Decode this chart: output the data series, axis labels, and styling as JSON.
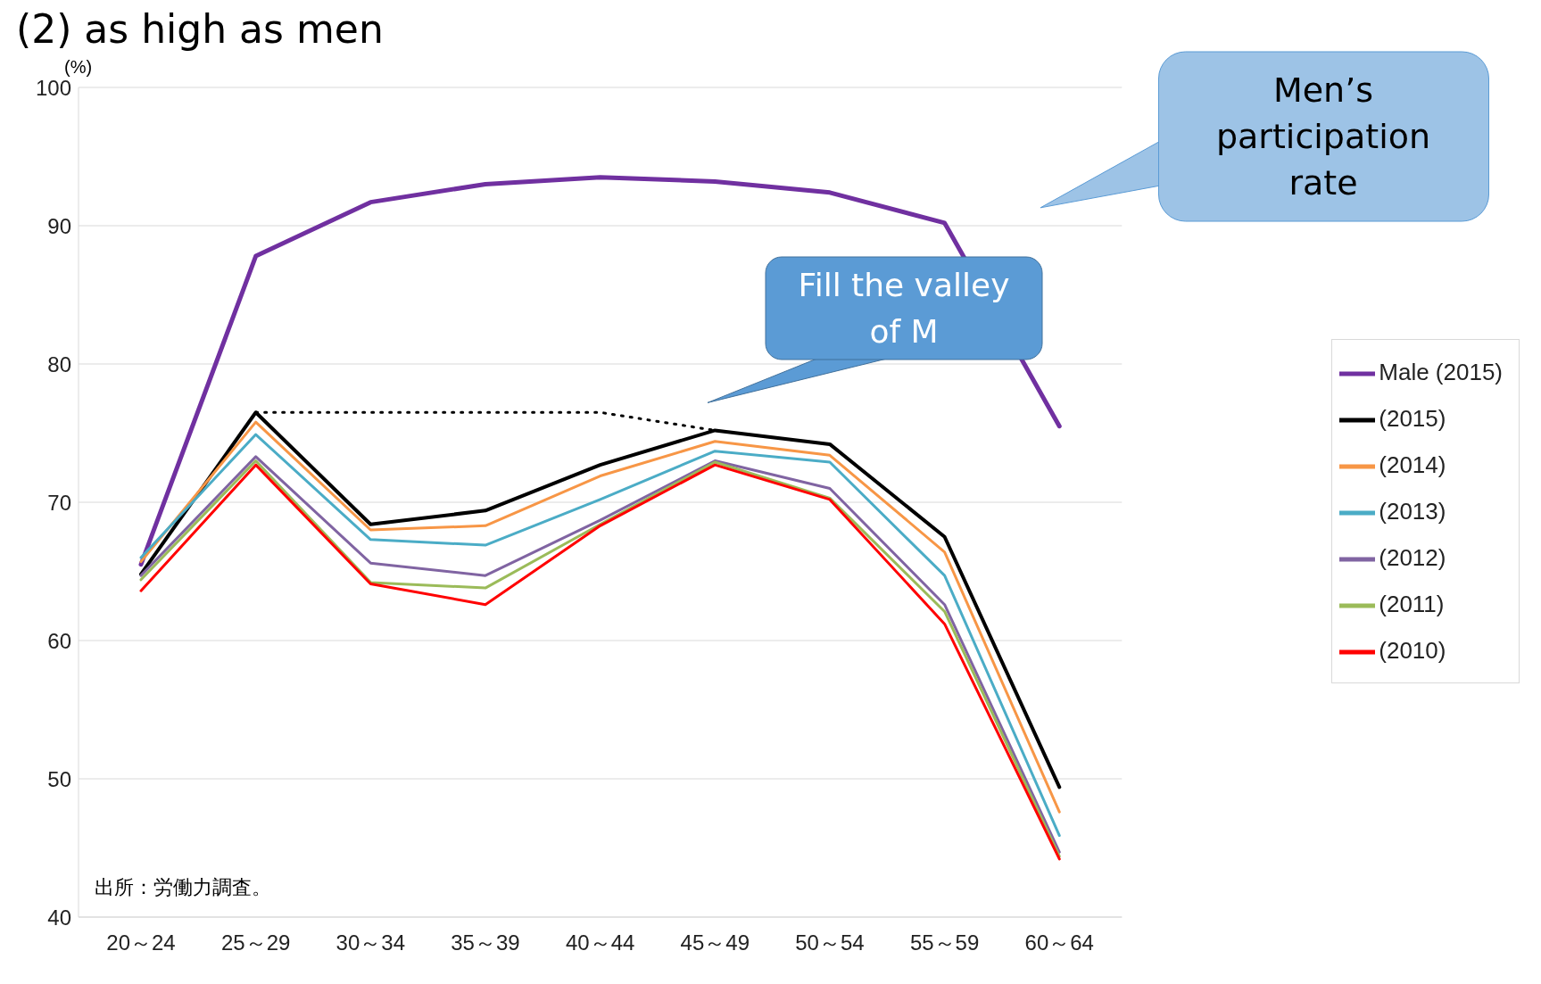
{
  "chart_data": {
    "type": "line",
    "title": "(2) as high as men",
    "ylabel": "(%)",
    "categories": [
      "20～24",
      "25～29",
      "30～34",
      "35～39",
      "40～44",
      "45～49",
      "50～54",
      "55～59",
      "60～64"
    ],
    "series": [
      {
        "name": "Male (2015)",
        "color": "#7030a0",
        "values": [
          65.5,
          87.8,
          91.7,
          93.0,
          93.5,
          93.2,
          92.4,
          90.2,
          75.5
        ]
      },
      {
        "name": "(2015)",
        "color": "#000000",
        "values": [
          64.8,
          76.5,
          68.4,
          69.4,
          72.7,
          75.2,
          74.2,
          67.5,
          49.4
        ]
      },
      {
        "name": "(2014)",
        "color": "#f79646",
        "values": [
          65.7,
          75.8,
          68.0,
          68.3,
          71.9,
          74.4,
          73.4,
          66.4,
          47.6
        ]
      },
      {
        "name": "(2013)",
        "color": "#4bacc6",
        "values": [
          66.0,
          74.9,
          67.3,
          66.9,
          70.2,
          73.7,
          72.9,
          64.7,
          45.9
        ]
      },
      {
        "name": "(2012)",
        "color": "#8064a2",
        "values": [
          64.7,
          73.3,
          65.6,
          64.7,
          68.7,
          73.0,
          71.0,
          62.6,
          44.7
        ]
      },
      {
        "name": "(2011)",
        "color": "#9bbb59",
        "values": [
          64.4,
          73.0,
          64.2,
          63.8,
          68.4,
          72.9,
          70.3,
          62.1,
          44.4
        ]
      },
      {
        "name": "(2010)",
        "color": "#ff0000",
        "values": [
          63.6,
          72.7,
          64.1,
          62.6,
          68.3,
          72.7,
          70.2,
          61.2,
          44.2
        ]
      },
      {
        "color": "#000000",
        "line_style": "dotted",
        "values": [
          null,
          76.5,
          76.5,
          76.5,
          76.5,
          75.2,
          null,
          null,
          null
        ]
      }
    ],
    "ylim": [
      40,
      100
    ],
    "yticks": [
      40,
      50,
      60,
      70,
      80,
      90,
      100
    ],
    "grid": "y",
    "legend": "right",
    "marker": "none",
    "line_style": "solid",
    "annotations": [
      "Men’s participation rate",
      "Fill the valley of M",
      "出所：労働力調査。"
    ]
  }
}
